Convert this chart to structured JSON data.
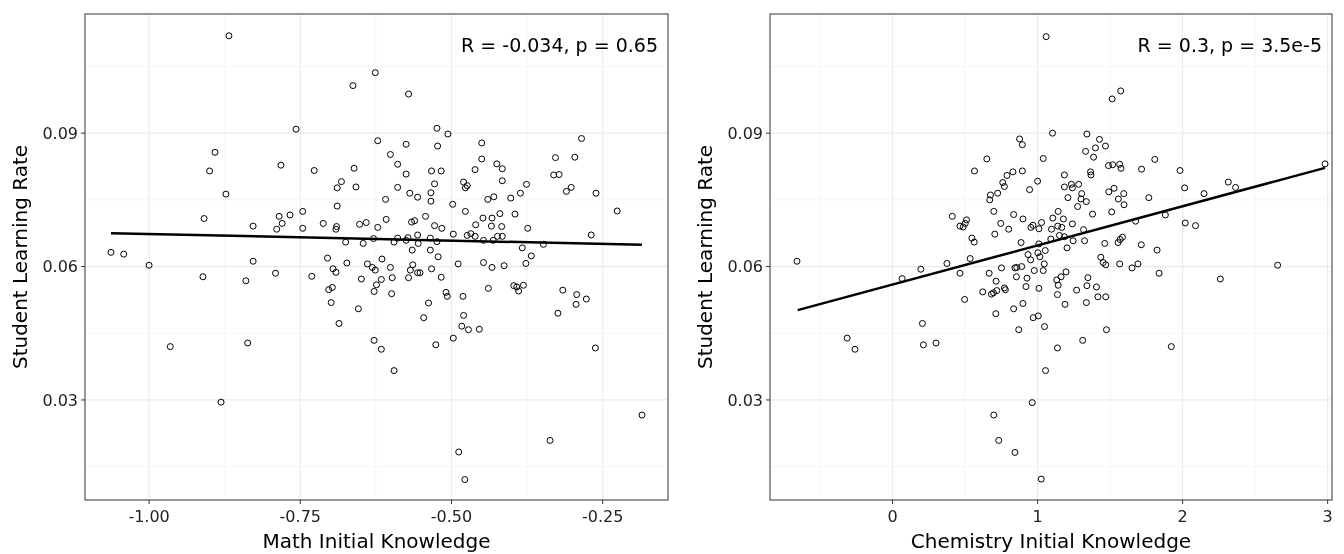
{
  "chart_data": [
    {
      "type": "scatter",
      "xlabel": "Math Initial Knowledge",
      "ylabel": "Student Learning Rate",
      "annotations": [
        "R = -0.034, p = 0.65"
      ],
      "xlim": [
        -1.106,
        -0.142
      ],
      "ylim": [
        0.0075,
        0.1168
      ],
      "xticks": [
        {
          "value": -1,
          "label": "-1.00"
        },
        -0.75,
        {
          "value": -0.5,
          "label": "-0.50"
        },
        -0.25
      ],
      "yticks": [
        0.03,
        0.06,
        0.09
      ],
      "grid": true,
      "line_style": "solid",
      "series": [
        {
          "marker": "circle",
          "color": "#000000",
          "x": [
            -0.868,
            -0.626,
            -0.663,
            -0.757,
            -0.622,
            -0.891,
            -0.782,
            -0.9,
            -0.727,
            -0.661,
            -0.682,
            -0.689,
            -0.658,
            -0.873,
            -0.689,
            -0.909,
            -0.746,
            -0.767,
            -0.785,
            -0.78,
            -0.828,
            -0.789,
            -0.746,
            -0.712,
            -0.69,
            -0.691,
            -0.652,
            -0.641,
            -0.622,
            -1.063,
            -1.042,
            -1.0,
            -0.828,
            -0.675,
            -0.646,
            -0.629,
            -0.705,
            -0.673,
            -0.639,
            -0.631,
            -0.626,
            -0.696,
            -0.691,
            -0.911,
            -0.84,
            -0.791,
            -0.731,
            -0.649,
            -0.697,
            -0.703,
            -0.624,
            -0.628,
            -0.699,
            -0.654,
            -0.686,
            -0.965,
            -0.837,
            -0.628,
            -0.881,
            -0.571,
            -0.524,
            -0.506,
            -0.575,
            -0.523,
            -0.45,
            -0.285,
            -0.601,
            -0.589,
            -0.575,
            -0.533,
            -0.517,
            -0.45,
            -0.425,
            -0.416,
            -0.461,
            -0.416,
            -0.328,
            -0.296,
            -0.331,
            -0.322,
            -0.589,
            -0.528,
            -0.48,
            -0.477,
            -0.474,
            -0.376,
            -0.569,
            -0.556,
            -0.534,
            -0.534,
            -0.609,
            -0.498,
            -0.44,
            -0.43,
            -0.402,
            -0.386,
            -0.31,
            -0.302,
            -0.261,
            -0.226,
            -0.608,
            -0.566,
            -0.561,
            -0.543,
            -0.528,
            -0.516,
            -0.477,
            -0.42,
            -0.395,
            -0.448,
            -0.433,
            -0.46,
            -0.434,
            -0.417,
            -0.374,
            -0.269,
            -0.595,
            -0.589,
            -0.575,
            -0.572,
            -0.556,
            -0.555,
            -0.535,
            -0.524,
            -0.497,
            -0.474,
            -0.468,
            -0.461,
            -0.447,
            -0.431,
            -0.424,
            -0.416,
            -0.565,
            -0.535,
            -0.383,
            -0.348,
            -0.368,
            -0.615,
            -0.522,
            -0.489,
            -0.447,
            -0.433,
            -0.413,
            -0.377,
            -0.601,
            -0.564,
            -0.568,
            -0.556,
            -0.552,
            -0.533,
            -0.571,
            -0.598,
            -0.616,
            -0.517,
            -0.599,
            -0.509,
            -0.507,
            -0.481,
            -0.439,
            -0.397,
            -0.392,
            -0.389,
            -0.381,
            -0.316,
            -0.293,
            -0.294,
            -0.277,
            -0.324,
            -0.538,
            -0.546,
            -0.48,
            -0.483,
            -0.472,
            -0.454,
            -0.497,
            -0.526,
            -0.262,
            -0.616,
            -0.595,
            -0.185,
            -0.337,
            -0.488,
            -0.478
          ],
          "values": [
            0.1119,
            0.1036,
            0.1007,
            0.0909,
            0.0883,
            0.0857,
            0.0828,
            0.0815,
            0.0816,
            0.0821,
            0.0791,
            0.0777,
            0.0779,
            0.0763,
            0.0736,
            0.0708,
            0.0724,
            0.0716,
            0.0713,
            0.0697,
            0.0691,
            0.0684,
            0.0686,
            0.0697,
            0.069,
            0.0684,
            0.0695,
            0.0699,
            0.0688,
            0.0632,
            0.0628,
            0.0603,
            0.0612,
            0.0655,
            0.0652,
            0.0663,
            0.0619,
            0.0608,
            0.0606,
            0.0598,
            0.0592,
            0.0595,
            0.0587,
            0.0577,
            0.0568,
            0.0585,
            0.0578,
            0.0572,
            0.0553,
            0.0548,
            0.0559,
            0.0544,
            0.0519,
            0.0505,
            0.0472,
            0.042,
            0.0428,
            0.0434,
            0.0295,
            0.0988,
            0.0911,
            0.0898,
            0.0875,
            0.0871,
            0.0878,
            0.0888,
            0.0852,
            0.083,
            0.0808,
            0.0815,
            0.0815,
            0.0842,
            0.0831,
            0.082,
            0.0818,
            0.0793,
            0.0845,
            0.0846,
            0.0806,
            0.0807,
            0.0778,
            0.0786,
            0.079,
            0.0777,
            0.0782,
            0.0785,
            0.0765,
            0.0756,
            0.0766,
            0.0747,
            0.0751,
            0.074,
            0.0751,
            0.0757,
            0.0754,
            0.0765,
            0.0769,
            0.0778,
            0.0765,
            0.0725,
            0.0706,
            0.07,
            0.0703,
            0.0713,
            0.0692,
            0.0686,
            0.0724,
            0.0719,
            0.0718,
            0.0709,
            0.0709,
            0.0694,
            0.0691,
            0.069,
            0.0686,
            0.0671,
            0.0655,
            0.0664,
            0.0659,
            0.0665,
            0.0671,
            0.0652,
            0.0664,
            0.0656,
            0.0673,
            0.067,
            0.0674,
            0.0668,
            0.0659,
            0.0659,
            0.0668,
            0.0668,
            0.0637,
            0.0637,
            0.0642,
            0.065,
            0.0624,
            0.0617,
            0.0622,
            0.0606,
            0.0609,
            0.0598,
            0.0602,
            0.0607,
            0.0598,
            0.0604,
            0.0592,
            0.0586,
            0.0586,
            0.0595,
            0.0575,
            0.0575,
            0.0571,
            0.0576,
            0.0539,
            0.0542,
            0.0533,
            0.0533,
            0.0551,
            0.0557,
            0.0554,
            0.0545,
            0.0558,
            0.0547,
            0.0537,
            0.0515,
            0.0527,
            0.0495,
            0.0518,
            0.0485,
            0.049,
            0.0466,
            0.0458,
            0.0459,
            0.0439,
            0.0424,
            0.0417,
            0.0414,
            0.0366,
            0.0266,
            0.0209,
            0.0183,
            0.0121
          ]
        },
        {
          "type": "line",
          "color": "#000000",
          "x": [
            -1.063,
            -0.185
          ],
          "values": [
            0.0675,
            0.0649
          ]
        }
      ]
    },
    {
      "type": "scatter",
      "xlabel": "Chemistry Initial Knowledge",
      "ylabel": "Student Learning Rate",
      "annotations": [
        "R = 0.3, p = 3.5e-5"
      ],
      "xlim": [
        -0.845,
        3.03
      ],
      "ylim": [
        0.0075,
        0.1168
      ],
      "xticks": [
        0,
        1,
        2,
        3
      ],
      "yticks": [
        0.03,
        0.06,
        0.09
      ],
      "grid": true,
      "line_style": "solid",
      "series": [
        {
          "marker": "circle",
          "color": "#000000",
          "x": [
            -0.659,
            -0.313,
            -0.259,
            0.066,
            0.195,
            0.206,
            0.213,
            0.3,
            0.375,
            0.412,
            0.465,
            0.487,
            0.501,
            0.51,
            0.465,
            0.497,
            0.535,
            0.547,
            0.563,
            0.565,
            0.622,
            0.65,
            0.666,
            0.67,
            0.675,
            0.682,
            0.696,
            0.698,
            0.705,
            0.714,
            0.719,
            0.712,
            0.725,
            0.746,
            0.751,
            0.76,
            0.771,
            0.771,
            0.778,
            0.789,
            0.801,
            0.83,
            0.835,
            0.835,
            0.844,
            0.856,
            0.854,
            0.87,
            0.876,
            0.895,
            0.895,
            0.886,
            0.89,
            0.899,
            0.899,
            0.92,
            0.927,
            0.934,
            0.945,
            0.952,
            0.954,
            0.968,
            0.97,
            0.977,
            1.0,
            1.005,
            1.009,
            1.009,
            1.009,
            1.002,
            1.016,
            1.027,
            1.039,
            1.039,
            1.046,
            1.048,
            1.053,
            1.055,
            0.963,
            1.059,
            0.698,
            0.732,
            0.844,
            1.025,
            1.573,
            1.514,
            1.103,
            1.34,
            1.427,
            1.468,
            1.331,
            1.399,
            1.386,
            1.808,
            2.982,
            1.489,
            1.518,
            1.566,
            1.575,
            1.717,
            1.982,
            1.365,
            1.368,
            1.185,
            1.185,
            1.233,
            1.24,
            1.283,
            2.014,
            2.315,
            2.365,
            1.491,
            1.527,
            2.148,
            1.304,
            1.209,
            1.299,
            1.336,
            1.557,
            1.594,
            1.767,
            1.276,
            1.596,
            1.511,
            1.379,
            1.881,
            1.142,
            1.105,
            1.178,
            1.139,
            1.167,
            1.24,
            1.096,
            1.317,
            1.676,
            2.018,
            2.089,
            1.151,
            1.185,
            1.091,
            1.245,
            1.324,
            1.463,
            1.555,
            1.569,
            1.585,
            1.715,
            1.203,
            1.824,
            1.436,
            1.452,
            1.47,
            1.566,
            1.651,
            1.692,
            2.655,
            1.196,
            1.162,
            1.132,
            1.142,
            1.347,
            1.34,
            1.406,
            1.269,
            1.838,
            2.26,
            1.137,
            1.189,
            1.336,
            1.416,
            1.47,
            1.475,
            1.311,
            1.137,
            1.922
          ],
          "values": [
            0.0612,
            0.0439,
            0.0414,
            0.0573,
            0.0594,
            0.0472,
            0.0424,
            0.0428,
            0.0607,
            0.0713,
            0.0691,
            0.0689,
            0.0697,
            0.0705,
            0.0585,
            0.0526,
            0.0618,
            0.0664,
            0.0655,
            0.0815,
            0.0543,
            0.0842,
            0.0585,
            0.075,
            0.0761,
            0.0538,
            0.0541,
            0.0724,
            0.0673,
            0.0567,
            0.0546,
            0.0494,
            0.0765,
            0.0697,
            0.0597,
            0.0789,
            0.078,
            0.0552,
            0.0548,
            0.0805,
            0.0684,
            0.0813,
            0.0717,
            0.0505,
            0.0597,
            0.0598,
            0.0577,
            0.0458,
            0.0887,
            0.0874,
            0.0815,
            0.0654,
            0.06,
            0.0707,
            0.0517,
            0.0555,
            0.0574,
            0.0627,
            0.0773,
            0.0615,
            0.0688,
            0.0693,
            0.0485,
            0.0591,
            0.0792,
            0.0489,
            0.0551,
            0.0685,
            0.0651,
            0.0631,
            0.0622,
            0.0699,
            0.0843,
            0.0591,
            0.0606,
            0.0465,
            0.0636,
            0.0366,
            0.0294,
            0.1117,
            0.0266,
            0.0209,
            0.0182,
            0.0122,
            0.0995,
            0.0977,
            0.09,
            0.0898,
            0.0886,
            0.0871,
            0.0859,
            0.0867,
            0.0846,
            0.0841,
            0.0831,
            0.0827,
            0.0829,
            0.083,
            0.0821,
            0.0819,
            0.0816,
            0.0813,
            0.0806,
            0.0806,
            0.0779,
            0.0785,
            0.0777,
            0.0785,
            0.0777,
            0.079,
            0.0778,
            0.0768,
            0.0776,
            0.0764,
            0.0764,
            0.0755,
            0.0752,
            0.0746,
            0.0752,
            0.0764,
            0.0755,
            0.0735,
            0.0739,
            0.0723,
            0.0718,
            0.0716,
            0.0724,
            0.0709,
            0.0707,
            0.0691,
            0.0688,
            0.0696,
            0.0684,
            0.0683,
            0.0702,
            0.0698,
            0.0692,
            0.067,
            0.0667,
            0.0662,
            0.0658,
            0.0658,
            0.0652,
            0.0654,
            0.0661,
            0.0666,
            0.0649,
            0.0642,
            0.0637,
            0.0621,
            0.0609,
            0.0604,
            0.0606,
            0.0597,
            0.0606,
            0.0603,
            0.0588,
            0.0577,
            0.057,
            0.0558,
            0.0575,
            0.0557,
            0.0554,
            0.0547,
            0.0585,
            0.0572,
            0.0537,
            0.0515,
            0.0519,
            0.0532,
            0.0532,
            0.0458,
            0.0434,
            0.0417,
            0.042
          ]
        },
        {
          "type": "line",
          "color": "#000000",
          "x": [
            -0.654,
            2.982
          ],
          "values": [
            0.0502,
            0.0822
          ]
        }
      ]
    }
  ]
}
